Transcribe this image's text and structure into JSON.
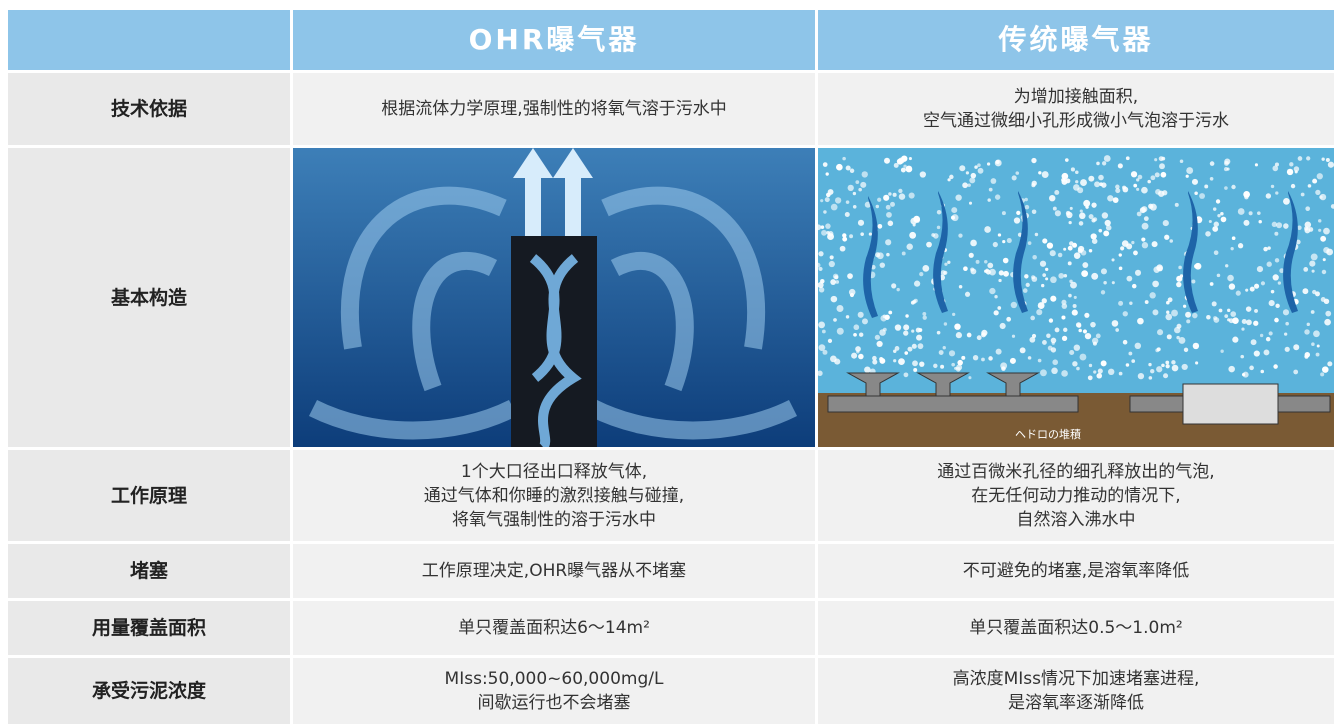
{
  "header": {
    "columns": [
      "OHR曝气器",
      "传统曝气器"
    ]
  },
  "rows": [
    {
      "label": "技术依据",
      "cells": [
        [
          "根据流体力学原理,强制性的将氧气溶于污水中"
        ],
        [
          "为增加接触面积,",
          "空气通过微细小孔形成微小气泡溶于污水"
        ]
      ]
    },
    {
      "label": "基本构造",
      "image_caption": "ヘドロの堆積"
    },
    {
      "label": "工作原理",
      "cells": [
        [
          "1个大口径出口释放气体,",
          "通过气体和你睡的激烈接触与碰撞,",
          "将氧气强制性的溶于污水中"
        ],
        [
          "通过百微米孔径的细孔释放出的气泡,",
          "在无任何动力推动的情况下,",
          "自然溶入沸水中"
        ]
      ]
    },
    {
      "label": "堵塞",
      "cells": [
        [
          "工作原理决定,OHR曝气器从不堵塞"
        ],
        [
          "不可避免的堵塞,是溶氧率降低"
        ]
      ]
    },
    {
      "label": "用量覆盖面积",
      "cells": [
        [
          "单只覆盖面积达6～14m²"
        ],
        [
          "单只覆盖面积达0.5～1.0m²"
        ]
      ]
    },
    {
      "label": "承受污泥浓度",
      "cells": [
        [
          "MIss:50,000~60,000mg/L",
          "间歇运行也不会堵塞"
        ],
        [
          "高浓度MIss情况下加速堵塞进程,",
          "是溶氧率逐渐降低"
        ]
      ]
    }
  ]
}
